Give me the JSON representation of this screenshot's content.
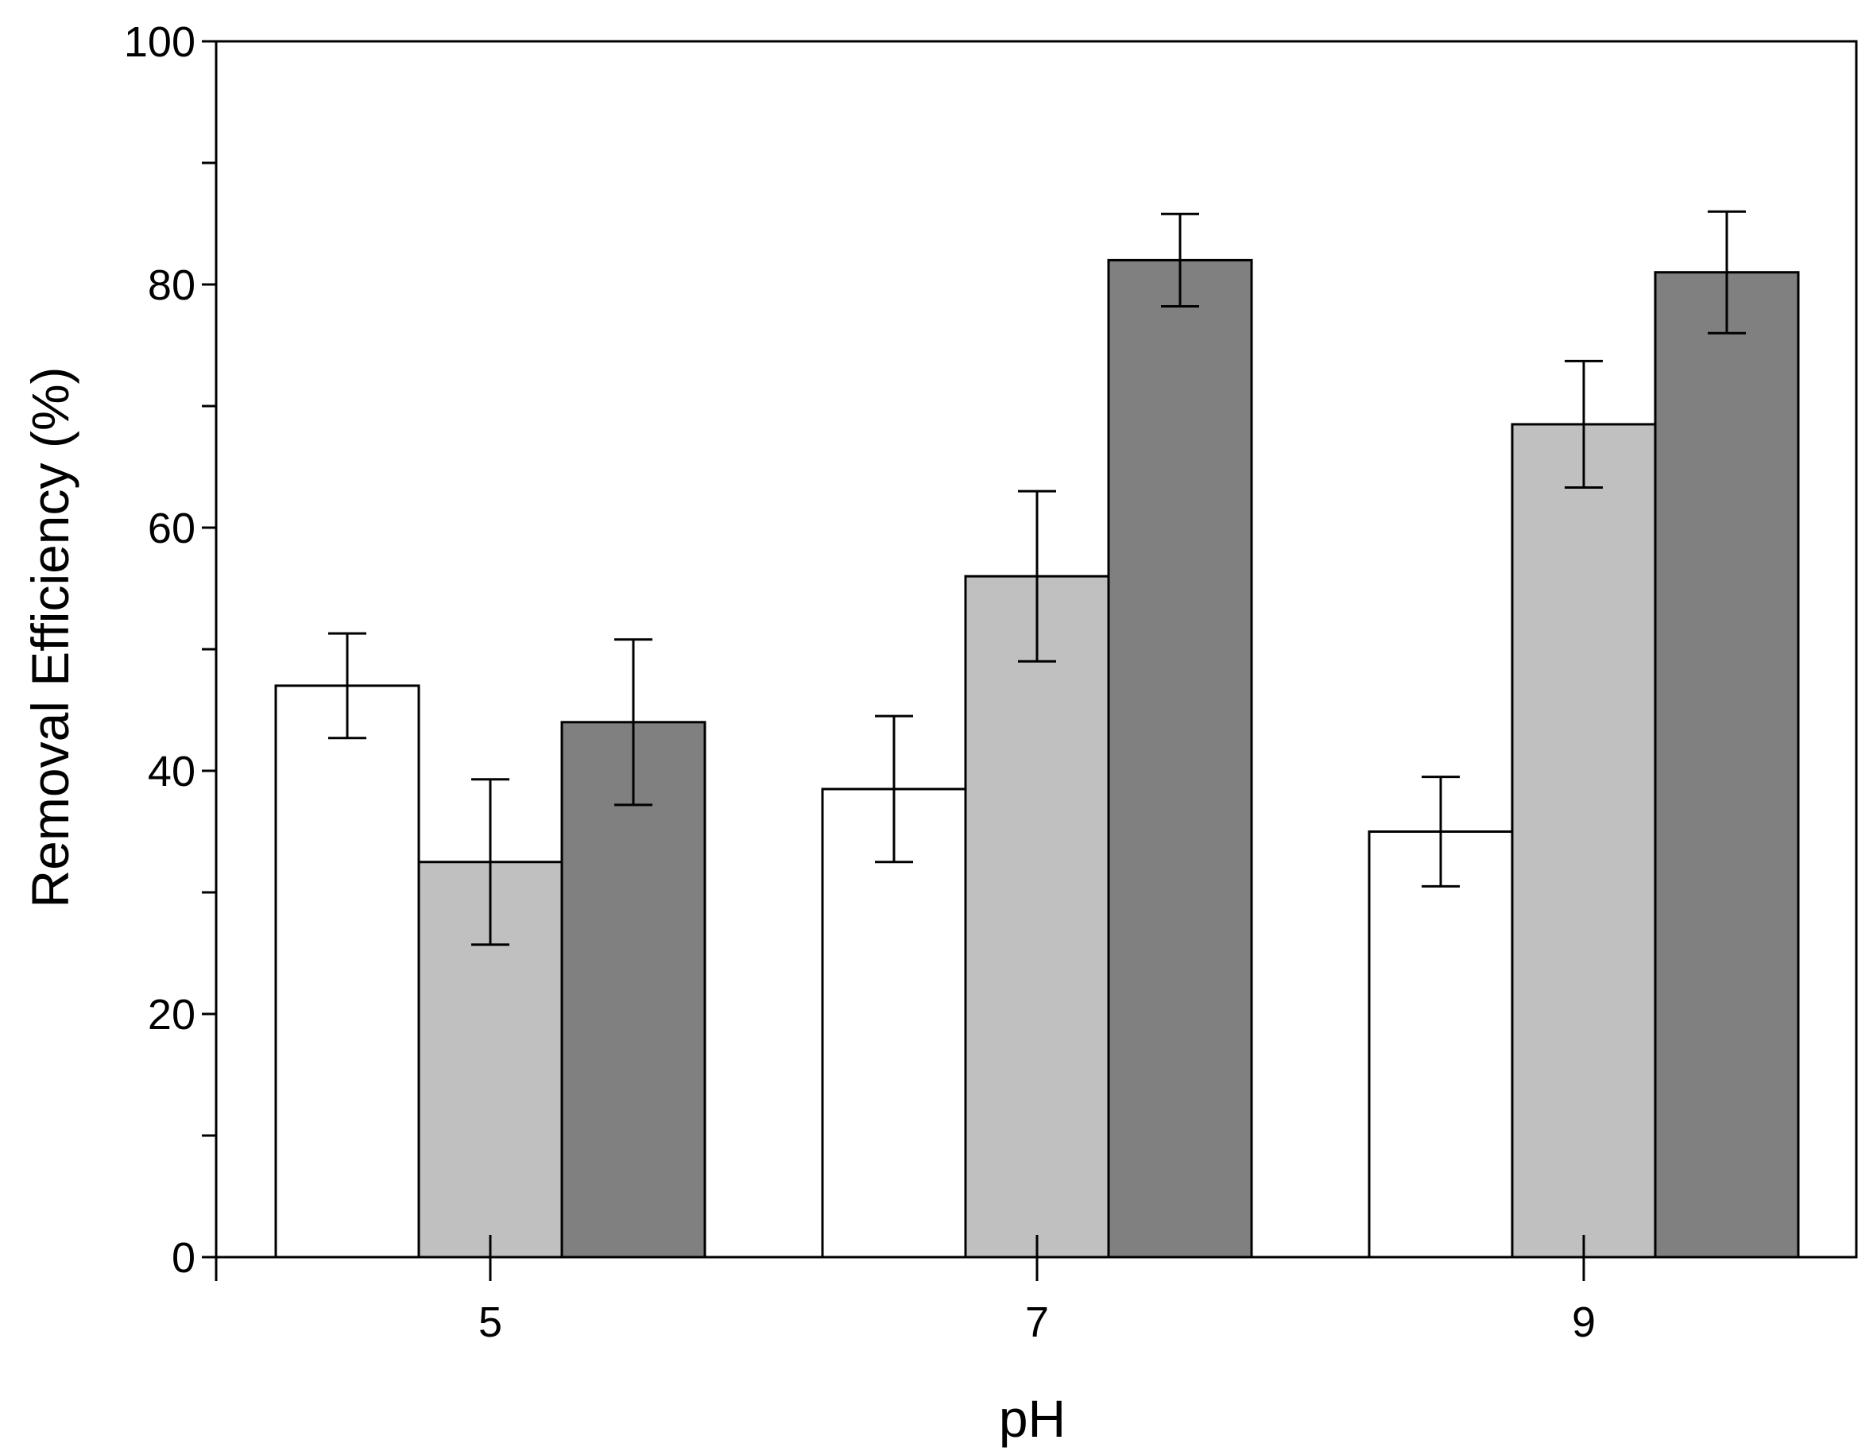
{
  "chart_data": {
    "type": "bar",
    "title": "",
    "xlabel": "pH",
    "ylabel": "Removal Efficiency (%)",
    "categories": [
      "5",
      "7",
      "9"
    ],
    "ylim": [
      0,
      100
    ],
    "yticks": [
      "0",
      "20",
      "40",
      "60",
      "80",
      "100"
    ],
    "grid": false,
    "legend": "none",
    "series": [
      {
        "color": "#ffffff",
        "values": [
          47,
          38.5,
          35
        ],
        "errors": [
          4.3,
          6.0,
          4.5
        ]
      },
      {
        "color": "#c0c0c0",
        "values": [
          32.5,
          56,
          68.5
        ],
        "errors": [
          6.8,
          7.0,
          5.2
        ]
      },
      {
        "color": "#808080",
        "values": [
          44,
          82,
          81
        ],
        "errors": [
          6.8,
          3.8,
          5.0
        ]
      }
    ]
  }
}
